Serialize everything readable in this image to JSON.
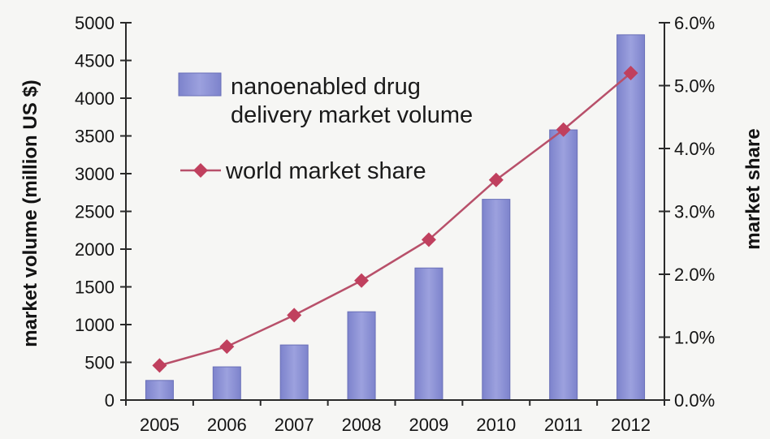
{
  "chart_data": {
    "type": "bar",
    "categories": [
      "2005",
      "2006",
      "2007",
      "2008",
      "2009",
      "2010",
      "2011",
      "2012"
    ],
    "series": [
      {
        "name": "nanoenabled drug delivery market volume",
        "type": "bar",
        "axis": "left",
        "values": [
          260,
          440,
          730,
          1170,
          1750,
          2660,
          3580,
          4840
        ]
      },
      {
        "name": "world market share",
        "type": "line",
        "axis": "right",
        "values": [
          0.55,
          0.85,
          1.35,
          1.9,
          2.55,
          3.5,
          4.3,
          5.2
        ]
      }
    ],
    "ylabel": "market volume (million US $)",
    "y2label": "market share",
    "ylim": [
      0,
      5000
    ],
    "y2lim": [
      0,
      6.0
    ],
    "yticks": [
      "0",
      "500",
      "1000",
      "1500",
      "2000",
      "2500",
      "3000",
      "3500",
      "4000",
      "4500",
      "5000"
    ],
    "y2ticks": [
      "0.0%",
      "1.0%",
      "2.0%",
      "3.0%",
      "4.0%",
      "5.0%",
      "6.0%"
    ],
    "legend_position": "top-left",
    "grid": false,
    "colors": {
      "bar_fill": "#8e94d6",
      "bar_stroke": "#6a70b8",
      "line": "#b8506a",
      "marker": "#c0405e",
      "axis": "#2a2a2a"
    }
  }
}
